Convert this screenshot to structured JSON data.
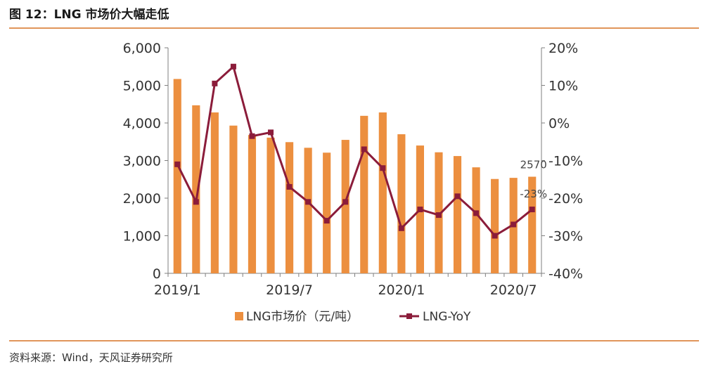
{
  "header": {
    "title": "图 12：LNG 市场价大幅走低"
  },
  "footer": {
    "source": "资料来源：Wind，天风证券研究所"
  },
  "colors": {
    "bar": "#ec8f3f",
    "line": "#8b1c3a",
    "axis": "#7f7f7f",
    "rule": "#e1955a"
  },
  "chart_data": {
    "type": "bar",
    "categories": [
      "2019/1",
      "2019/2",
      "2019/3",
      "2019/4",
      "2019/5",
      "2019/6",
      "2019/7",
      "2019/8",
      "2019/9",
      "2019/10",
      "2019/11",
      "2019/12",
      "2020/1",
      "2020/2",
      "2020/3",
      "2020/4",
      "2020/5",
      "2020/6",
      "2020/7",
      "2020/8"
    ],
    "x_tick_labels": [
      "2019/1",
      "2019/7",
      "2020/1",
      "2020/7"
    ],
    "x_tick_indices": [
      0,
      6,
      12,
      18
    ],
    "left_axis": {
      "ylim": [
        0,
        6000
      ],
      "ticks": [
        0,
        1000,
        2000,
        3000,
        4000,
        5000,
        6000
      ],
      "tick_labels": [
        "0",
        "1,000",
        "2,000",
        "3,000",
        "4,000",
        "5,000",
        "6,000"
      ]
    },
    "right_axis": {
      "ylim": [
        -40,
        20
      ],
      "ticks": [
        -40,
        -30,
        -20,
        -10,
        0,
        10,
        20
      ],
      "tick_labels": [
        "-40%",
        "-30%",
        "-20%",
        "-10%",
        "0%",
        "10%",
        "20%"
      ]
    },
    "series": [
      {
        "name": "LNG市场价（元/吨）",
        "type": "bar",
        "axis": "left",
        "values": [
          5170,
          4470,
          4280,
          3930,
          3680,
          3610,
          3490,
          3340,
          3210,
          3550,
          4190,
          4280,
          3700,
          3400,
          3220,
          3120,
          2820,
          2510,
          2540,
          2570
        ]
      },
      {
        "name": "LNG-YoY",
        "type": "line",
        "axis": "right",
        "values": [
          -11,
          -21,
          10.5,
          15,
          -3.5,
          -2.5,
          -17,
          -21,
          -26,
          -21,
          -7,
          -12,
          -28,
          -23,
          -24.5,
          -19.5,
          -24,
          -30,
          -27,
          -23
        ]
      }
    ],
    "annotations": [
      {
        "text": "2570",
        "series": 0,
        "index": 19
      },
      {
        "text": "-23%",
        "series": 1,
        "index": 19
      }
    ],
    "legend": {
      "position": "bottom"
    },
    "grid": false
  }
}
